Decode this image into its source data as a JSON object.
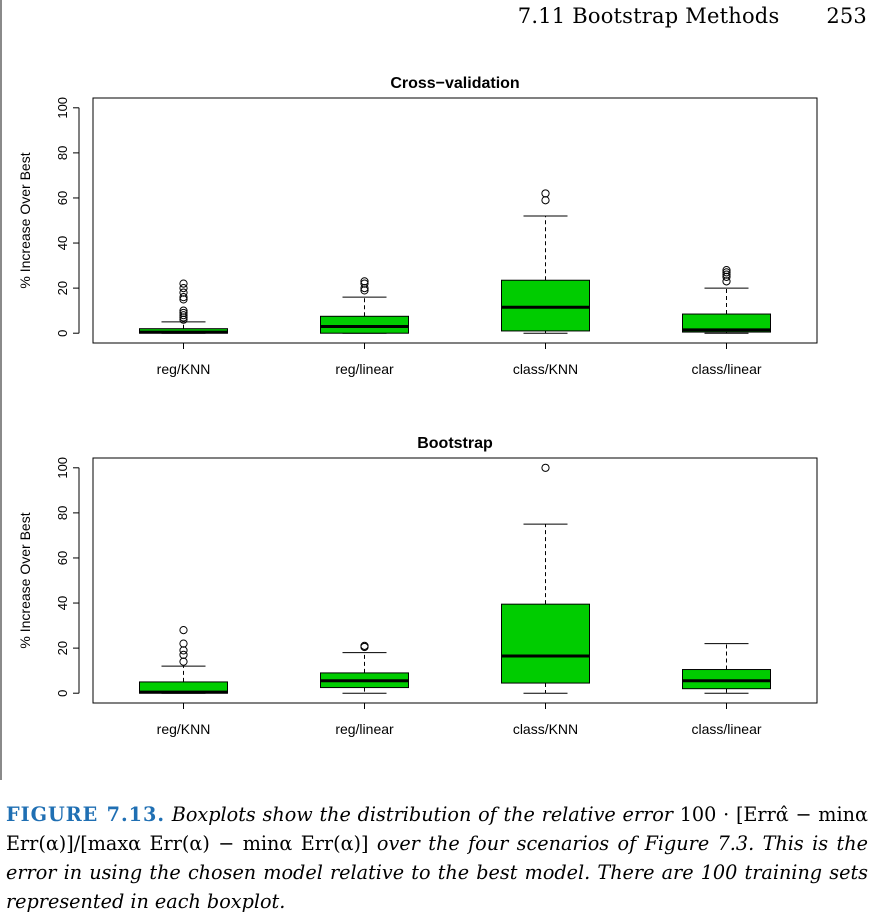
{
  "header": {
    "section": "7.11 Bootstrap Methods",
    "page": "253"
  },
  "chart_data": [
    {
      "type": "box",
      "title": "Cross−validation",
      "ylabel": "% Increase Over Best",
      "ylim": [
        0,
        100
      ],
      "yticks": [
        "0",
        "20",
        "40",
        "60",
        "80",
        "100"
      ],
      "categories": [
        "reg/KNN",
        "reg/linear",
        "class/KNN",
        "class/linear"
      ],
      "boxes": [
        {
          "q1": 0,
          "median": 0.5,
          "q3": 2,
          "whisker_low": 0,
          "whisker_high": 5,
          "outliers": [
            6,
            7,
            8,
            9,
            10,
            15,
            16,
            18,
            20,
            22
          ]
        },
        {
          "q1": 0,
          "median": 3,
          "q3": 7.5,
          "whisker_low": 0,
          "whisker_high": 16,
          "outliers": [
            19,
            20,
            22,
            23
          ]
        },
        {
          "q1": 1,
          "median": 11.5,
          "q3": 23.5,
          "whisker_low": 0,
          "whisker_high": 52,
          "outliers": [
            59,
            62
          ]
        },
        {
          "q1": 0.5,
          "median": 1.5,
          "q3": 8.5,
          "whisker_low": 0,
          "whisker_high": 20,
          "outliers": [
            23,
            25,
            26,
            27,
            28
          ]
        }
      ],
      "box_color": "#00cc00"
    },
    {
      "type": "box",
      "title": "Bootstrap",
      "ylabel": "% Increase Over Best",
      "ylim": [
        0,
        100
      ],
      "yticks": [
        "0",
        "20",
        "40",
        "60",
        "80",
        "100"
      ],
      "categories": [
        "reg/KNN",
        "reg/linear",
        "class/KNN",
        "class/linear"
      ],
      "boxes": [
        {
          "q1": 0,
          "median": 0.5,
          "q3": 5,
          "whisker_low": 0,
          "whisker_high": 12,
          "outliers": [
            14,
            17,
            19,
            22,
            28
          ]
        },
        {
          "q1": 2.5,
          "median": 5.5,
          "q3": 9,
          "whisker_low": 0,
          "whisker_high": 18,
          "outliers": [
            20.5,
            21
          ]
        },
        {
          "q1": 4.5,
          "median": 16.5,
          "q3": 39.5,
          "whisker_low": 0,
          "whisker_high": 75,
          "outliers": [
            100
          ]
        },
        {
          "q1": 2,
          "median": 5.5,
          "q3": 10.5,
          "whisker_low": 0,
          "whisker_high": 22,
          "outliers": []
        }
      ],
      "box_color": "#00cc00"
    }
  ],
  "caption": {
    "label": "FIGURE 7.13.",
    "text_before": "Boxplots show the distribution of the relative error",
    "formula": "100 · [Errα̂ − minα Err(α)]/[maxα Err(α) − minα Err(α)]",
    "text_after": "over the four scenarios of Figure 7.3. This is the error in using the chosen model relative to the best model. There are 100 training sets represented in each boxplot."
  }
}
